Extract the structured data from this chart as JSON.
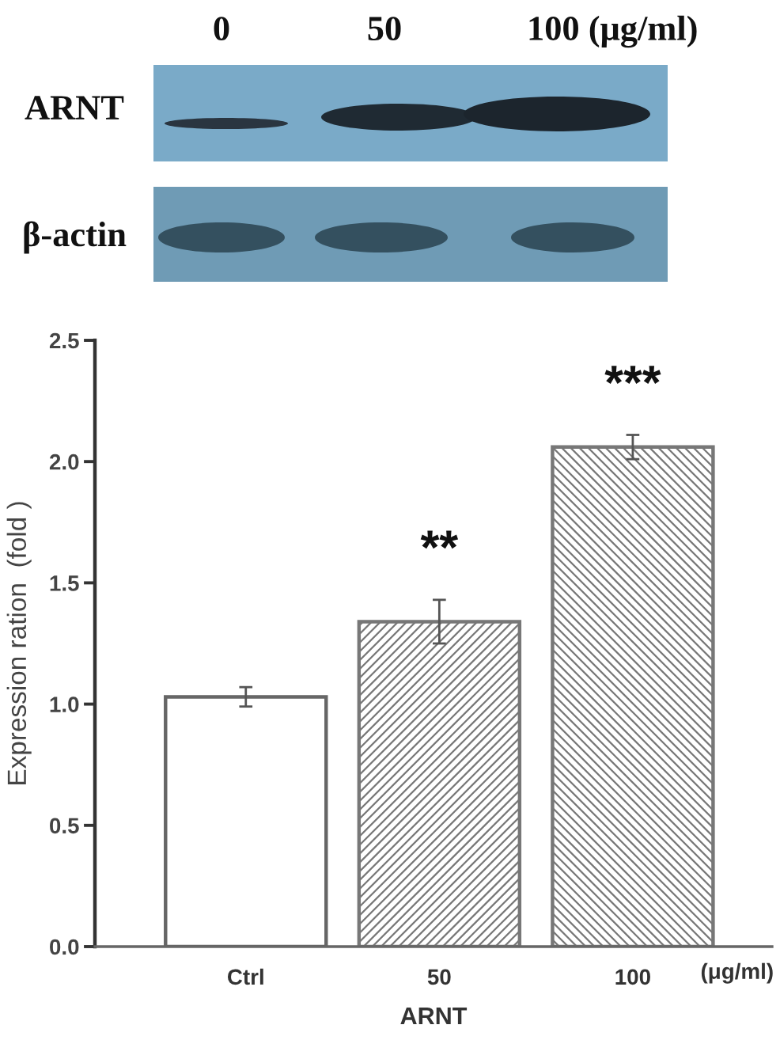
{
  "chart_data": {
    "type": "bar",
    "categories": [
      "Ctrl",
      "50",
      "100"
    ],
    "values": [
      1.03,
      1.34,
      2.06
    ],
    "errors": [
      0.04,
      0.09,
      0.05
    ],
    "colors": [
      "#ffffff",
      "#777777",
      "#777777"
    ],
    "ylim": [
      0,
      2.5
    ],
    "yticks": [
      {
        "value": 0,
        "label": "0.0"
      },
      0.5,
      {
        "value": 1,
        "label": "1.0"
      },
      1.5,
      {
        "value": 2,
        "label": "2.0"
      },
      2.5
    ],
    "xlabel": "ARNT",
    "ylabel": "Expression ration  (fold )",
    "annotations": [
      "0",
      "50",
      "100 (μg/ml)",
      "ARNT",
      "β-actin",
      "**",
      "***",
      "(μg/ml)"
    ],
    "grid": false
  }
}
